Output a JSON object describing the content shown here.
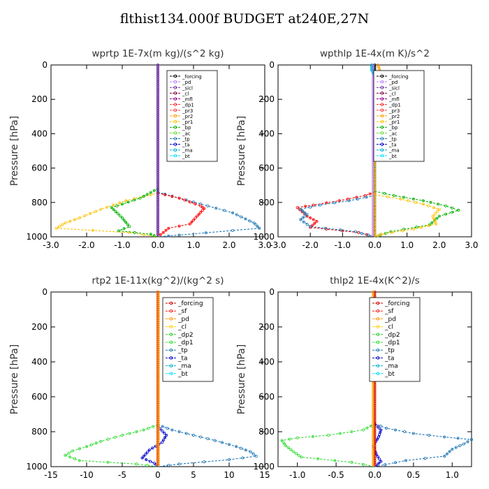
{
  "title": "flthist134.000f  BUDGET at240E,27N",
  "ylabel": "Pressure [hPa]",
  "panels": [
    {
      "title": "wprtp  1E-7x(m kg)/(s^2 kg)",
      "chart_data": {
        "type": "line",
        "xlim": [
          -3,
          3
        ],
        "ylim": [
          1000,
          0
        ],
        "x_ticks": [
          -3,
          -2,
          -1,
          0,
          1,
          2,
          3
        ],
        "x_tick_labels": [
          "-3.0",
          "-2.0",
          "-1.0",
          "0.0",
          "1.0",
          "2.0",
          "3.0"
        ],
        "y_ticks": [
          0,
          200,
          400,
          600,
          800,
          1000
        ],
        "y_tick_labels": [
          "0",
          "200",
          "400",
          "600",
          "800",
          "1000"
        ],
        "legend": [
          "_forcing",
          "_pd",
          "_sicl",
          "_cl",
          "_mfl",
          "_dp1",
          "_pr3",
          "_pr2",
          "_pr1",
          "_bp",
          "_ac",
          "_tp",
          "_ta",
          "_ma",
          "_bt"
        ],
        "series": [
          {
            "name": "_forcing",
            "color": "#000000",
            "points": [
              [
                0,
                0
              ],
              [
                0,
                1000
              ]
            ]
          },
          {
            "name": "_pd",
            "color": "#c080ff",
            "points": [
              [
                0,
                0
              ],
              [
                0,
                1000
              ]
            ]
          },
          {
            "name": "_tp",
            "color": "#1f77b4",
            "points": [
              [
                0,
                740
              ],
              [
                0.6,
                775
              ],
              [
                1.4,
                820
              ],
              [
                2.1,
                860
              ],
              [
                2.7,
                920
              ],
              [
                2.85,
                950
              ],
              [
                0.6,
                990
              ],
              [
                0,
                1000
              ]
            ]
          },
          {
            "name": "_pr1",
            "color": "#ffc000",
            "points": [
              [
                0,
                745
              ],
              [
                -0.4,
                765
              ],
              [
                -0.9,
                790
              ],
              [
                -1.6,
                840
              ],
              [
                -2.2,
                890
              ],
              [
                -2.6,
                920
              ],
              [
                -2.85,
                950
              ],
              [
                -0.8,
                975
              ],
              [
                0,
                1000
              ]
            ]
          },
          {
            "name": "_dp1",
            "color": "#ff0000",
            "points": [
              [
                0,
                745
              ],
              [
                0.6,
                775
              ],
              [
                1.2,
                820
              ],
              [
                1.3,
                835
              ],
              [
                1.1,
                880
              ],
              [
                0.9,
                925
              ],
              [
                0.3,
                950
              ],
              [
                0,
                1000
              ]
            ]
          },
          {
            "name": "_ac",
            "color": "#00b000",
            "points": [
              [
                0,
                720
              ],
              [
                -0.5,
                775
              ],
              [
                -1.0,
                810
              ],
              [
                -1.3,
                830
              ],
              [
                -1.0,
                890
              ],
              [
                -0.8,
                940
              ],
              [
                -1.1,
                965
              ],
              [
                -0.2,
                985
              ],
              [
                0,
                1000
              ]
            ]
          },
          {
            "name": "_sicl",
            "color": "#7030a0",
            "points": [
              [
                0,
                0
              ],
              [
                0,
                1000
              ]
            ]
          }
        ]
      }
    },
    {
      "title": "wpthlp  1E-4x(m K)/s^2",
      "chart_data": {
        "type": "line",
        "xlim": [
          -3,
          3
        ],
        "ylim": [
          1000,
          0
        ],
        "x_ticks": [
          -3,
          -2,
          -1,
          0,
          1,
          2,
          3
        ],
        "x_tick_labels": [
          "-3.0",
          "-2.0",
          "-1.0",
          "0.0",
          "1.0",
          "2.0",
          "3.0"
        ],
        "y_ticks": [
          0,
          200,
          400,
          600,
          800,
          1000
        ],
        "y_tick_labels": [
          "0",
          "200",
          "400",
          "600",
          "800",
          "1000"
        ],
        "legend": [
          "_forcing",
          "_pd",
          "_sicl",
          "_cl",
          "_mfl",
          "_dp1",
          "_pr3",
          "_pr2",
          "_pr1",
          "_bp",
          "_ac",
          "_tp",
          "_ta",
          "_ma",
          "_bt"
        ],
        "series": [
          {
            "name": "_forcing",
            "color": "#000000",
            "points": [
              [
                0,
                0
              ],
              [
                0,
                1000
              ]
            ]
          },
          {
            "name": "_pd",
            "color": "#c080ff",
            "points": [
              [
                -0.05,
                0
              ],
              [
                -0.05,
                1000
              ]
            ]
          },
          {
            "name": "_dp1",
            "color": "#ff0000",
            "points": [
              [
                0,
                740
              ],
              [
                -0.3,
                760
              ],
              [
                -1.1,
                790
              ],
              [
                -1.9,
                815
              ],
              [
                -2.4,
                830
              ],
              [
                -2.1,
                880
              ],
              [
                -1.8,
                910
              ],
              [
                -2.0,
                945
              ],
              [
                -0.5,
                975
              ],
              [
                0,
                1000
              ]
            ]
          },
          {
            "name": "_tp",
            "color": "#1f77b4",
            "points": [
              [
                0,
                760
              ],
              [
                -0.8,
                790
              ],
              [
                -1.7,
                815
              ],
              [
                -2.3,
                840
              ],
              [
                -2.1,
                870
              ],
              [
                -2.3,
                900
              ],
              [
                -2.0,
                940
              ],
              [
                -0.6,
                970
              ],
              [
                0,
                1000
              ]
            ]
          },
          {
            "name": "_ac",
            "color": "#00b000",
            "points": [
              [
                0,
                735
              ],
              [
                0.6,
                760
              ],
              [
                1.5,
                790
              ],
              [
                2.2,
                820
              ],
              [
                2.6,
                845
              ],
              [
                2.0,
                880
              ],
              [
                1.7,
                930
              ],
              [
                0.5,
                970
              ],
              [
                0,
                1000
              ]
            ]
          },
          {
            "name": "_pr1",
            "color": "#ffc000",
            "points": [
              [
                0,
                755
              ],
              [
                0.8,
                780
              ],
              [
                1.5,
                810
              ],
              [
                2.0,
                840
              ],
              [
                1.8,
                880
              ],
              [
                1.9,
                925
              ],
              [
                1.2,
                955
              ],
              [
                0.2,
                985
              ],
              [
                0,
                1000
              ]
            ]
          },
          {
            "name": "_ma",
            "color": "#00b0d0",
            "points": [
              [
                -0.1,
                0
              ],
              [
                -0.1,
                30
              ],
              [
                0,
                60
              ],
              [
                0,
                1000
              ]
            ]
          },
          {
            "name": "_pr2",
            "color": "#ffa000",
            "points": [
              [
                0.1,
                0
              ],
              [
                0.15,
                30
              ],
              [
                0,
                70
              ],
              [
                0,
                1000
              ]
            ]
          }
        ]
      }
    },
    {
      "title": "rtp2  1E-11x(kg^2)/(kg^2 s)",
      "chart_data": {
        "type": "line",
        "xlim": [
          -15,
          15
        ],
        "ylim": [
          1000,
          0
        ],
        "x_ticks": [
          -15,
          -10,
          -5,
          0,
          5,
          10,
          15
        ],
        "x_tick_labels": [
          "-15",
          "-10",
          "-5",
          "0",
          "5",
          "10",
          "15"
        ],
        "y_ticks": [
          0,
          200,
          400,
          600,
          800,
          1000
        ],
        "y_tick_labels": [
          "0",
          "200",
          "400",
          "600",
          "800",
          "1000"
        ],
        "legend": [
          "_forcing",
          "_sf",
          "_pd",
          "_cl",
          "_dp2",
          "_dp1",
          "_tp",
          "_ta",
          "_ma",
          "_bt"
        ],
        "series": [
          {
            "name": "_tp",
            "color": "#1f77b4",
            "points": [
              [
                0,
                760
              ],
              [
                2,
                790
              ],
              [
                5,
                820
              ],
              [
                8,
                850
              ],
              [
                11,
                885
              ],
              [
                13,
                915
              ],
              [
                13.8,
                940
              ],
              [
                10,
                960
              ],
              [
                3,
                985
              ],
              [
                0,
                1000
              ]
            ]
          },
          {
            "name": "_dp1",
            "color": "#33dd33",
            "points": [
              [
                0,
                760
              ],
              [
                -2,
                790
              ],
              [
                -5,
                820
              ],
              [
                -8,
                855
              ],
              [
                -10,
                885
              ],
              [
                -12,
                910
              ],
              [
                -13,
                935
              ],
              [
                -11,
                965
              ],
              [
                -3,
                985
              ],
              [
                0,
                1000
              ]
            ]
          },
          {
            "name": "_ta",
            "color": "#0000cc",
            "points": [
              [
                0,
                770
              ],
              [
                1.2,
                820
              ],
              [
                0.6,
                860
              ],
              [
                -1.2,
                905
              ],
              [
                -2.2,
                950
              ],
              [
                -0.5,
                980
              ],
              [
                0,
                1000
              ]
            ]
          },
          {
            "name": "_forcing",
            "color": "#cc0000",
            "points": [
              [
                0,
                0
              ],
              [
                0,
                1000
              ]
            ]
          },
          {
            "name": "_pd",
            "color": "#ff9900",
            "points": [
              [
                0.05,
                0
              ],
              [
                0.05,
                1000
              ]
            ]
          }
        ]
      }
    },
    {
      "title": "thlp2  1E-4x(K^2)/s",
      "chart_data": {
        "type": "line",
        "xlim": [
          -1.25,
          1.25
        ],
        "ylim": [
          1000,
          0
        ],
        "x_ticks": [
          -1.0,
          -0.5,
          0,
          0.5,
          1.0
        ],
        "x_tick_labels": [
          "-1.0",
          "-0.5",
          "0.0",
          "0.5",
          "1.0"
        ],
        "y_ticks": [
          0,
          200,
          400,
          600,
          800,
          1000
        ],
        "y_tick_labels": [
          "0",
          "200",
          "400",
          "600",
          "800",
          "1000"
        ],
        "legend": [
          "_forcing",
          "_sf",
          "_pd",
          "_cl",
          "_dp2",
          "_dp1",
          "_tp",
          "_ta",
          "_ma",
          "_bt"
        ],
        "series": [
          {
            "name": "_tp",
            "color": "#1f77b4",
            "points": [
              [
                0,
                755
              ],
              [
                0.15,
                780
              ],
              [
                0.5,
                810
              ],
              [
                0.9,
                830
              ],
              [
                1.25,
                845
              ],
              [
                1.15,
                870
              ],
              [
                1.0,
                900
              ],
              [
                0.9,
                940
              ],
              [
                0.4,
                965
              ],
              [
                0,
                1000
              ]
            ]
          },
          {
            "name": "_dp1",
            "color": "#33dd33",
            "points": [
              [
                0,
                755
              ],
              [
                -0.15,
                790
              ],
              [
                -0.6,
                820
              ],
              [
                -1.0,
                835
              ],
              [
                -1.2,
                850
              ],
              [
                -1.15,
                880
              ],
              [
                -1.05,
                915
              ],
              [
                -0.95,
                945
              ],
              [
                -0.3,
                975
              ],
              [
                0,
                1000
              ]
            ]
          },
          {
            "name": "_ta",
            "color": "#0000cc",
            "points": [
              [
                0,
                755
              ],
              [
                0.08,
                790
              ],
              [
                0.05,
                830
              ],
              [
                -0.02,
                880
              ],
              [
                0.02,
                930
              ],
              [
                0.08,
                970
              ],
              [
                0,
                1000
              ]
            ]
          },
          {
            "name": "_forcing",
            "color": "#cc0000",
            "points": [
              [
                0,
                0
              ],
              [
                0,
                1000
              ]
            ]
          },
          {
            "name": "_pd",
            "color": "#ff9900",
            "points": [
              [
                -0.02,
                0
              ],
              [
                -0.02,
                1000
              ]
            ]
          }
        ]
      }
    }
  ]
}
